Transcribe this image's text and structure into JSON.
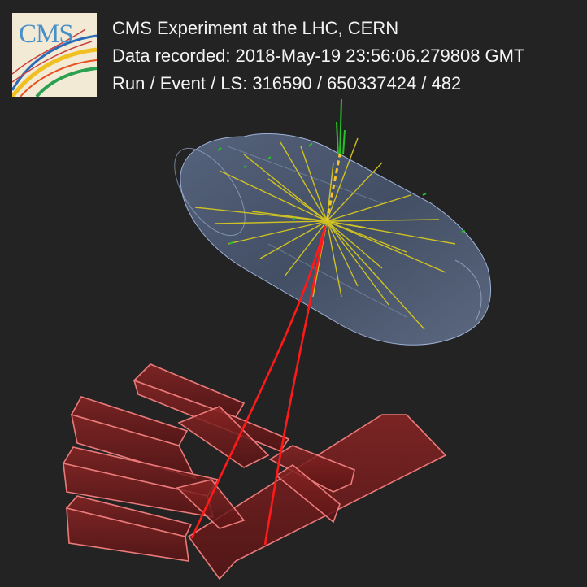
{
  "logo": {
    "text": "CMS"
  },
  "info": {
    "title": "CMS Experiment at the LHC, CERN",
    "recorded_label": "Data recorded:",
    "recorded_value": "2018-May-19 23:56:06.279808 GMT",
    "run_label": "Run / Event / LS:",
    "run_value": "316590 / 650337424 / 482"
  },
  "colors": {
    "background": "#232323",
    "tracks": "#d6c81f",
    "muons": "#ff1a1a",
    "muon_chambers": "#e46b6b",
    "detector": "#6f89b5",
    "energy_deposits": "#28c028",
    "text": "#f4f4f4"
  }
}
